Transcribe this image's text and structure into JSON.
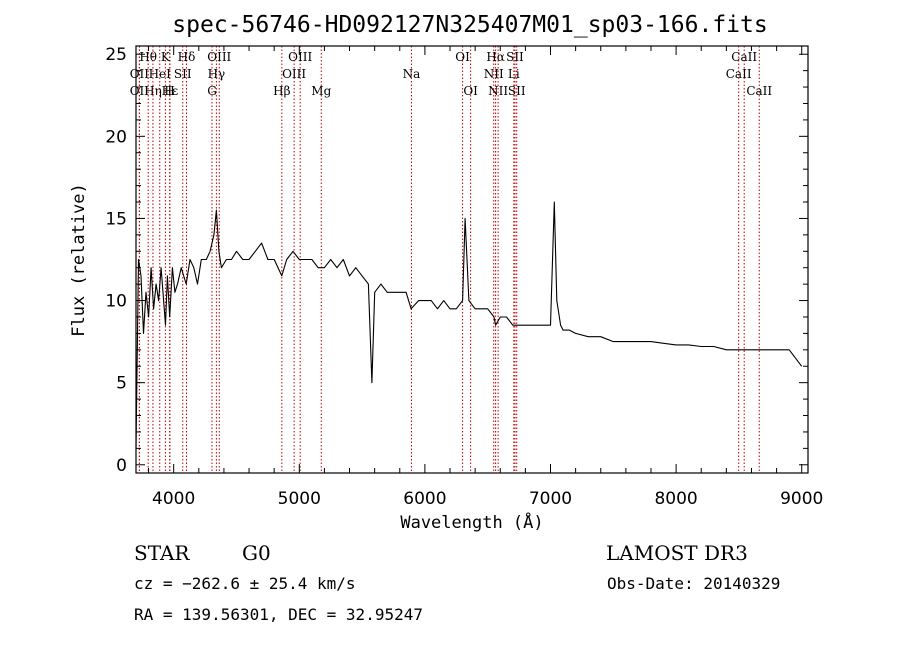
{
  "chart_data": {
    "type": "line",
    "title": "spec-56746-HD092127N325407M01_sp03-166.fits",
    "xlabel": "Wavelength (Å)",
    "ylabel": "Flux (relative)",
    "xlim": [
      3700,
      9050
    ],
    "ylim": [
      -0.5,
      25.5
    ],
    "xticks": [
      4000,
      5000,
      6000,
      7000,
      8000,
      9000
    ],
    "yticks": [
      0,
      5,
      10,
      15,
      20,
      25
    ],
    "series": [
      {
        "name": "flux",
        "x": [
          3700,
          3720,
          3740,
          3760,
          3780,
          3800,
          3820,
          3840,
          3860,
          3880,
          3900,
          3920,
          3935,
          3950,
          3968,
          3990,
          4010,
          4030,
          4060,
          4080,
          4100,
          4130,
          4160,
          4190,
          4220,
          4260,
          4290,
          4320,
          4340,
          4360,
          4380,
          4420,
          4460,
          4500,
          4550,
          4600,
          4650,
          4700,
          4750,
          4800,
          4861,
          4900,
          4950,
          5000,
          5050,
          5100,
          5150,
          5200,
          5250,
          5300,
          5350,
          5400,
          5450,
          5500,
          5550,
          5578,
          5600,
          5650,
          5700,
          5750,
          5800,
          5850,
          5890,
          5950,
          6000,
          6050,
          6100,
          6150,
          6200,
          6250,
          6300,
          6320,
          6350,
          6400,
          6450,
          6500,
          6550,
          6563,
          6600,
          6650,
          6700,
          6750,
          6800,
          6850,
          6900,
          6950,
          7000,
          7030,
          7050,
          7080,
          7100,
          7150,
          7200,
          7300,
          7400,
          7500,
          7600,
          7700,
          7800,
          7900,
          8000,
          8100,
          8200,
          8300,
          8400,
          8500,
          8600,
          8700,
          8800,
          8900,
          9000
        ],
        "values": [
          1,
          12.5,
          11.5,
          8,
          10.5,
          9,
          12,
          9.5,
          11,
          10,
          12,
          10,
          8.5,
          11.5,
          9,
          12,
          10.5,
          11,
          12,
          11.5,
          11,
          12.5,
          12,
          11,
          12.5,
          12.5,
          13,
          14,
          15.5,
          13,
          12,
          12.5,
          12.5,
          13,
          12.5,
          12.5,
          13,
          13.5,
          12.5,
          12.5,
          11.5,
          12.5,
          13,
          12.5,
          12.5,
          12.5,
          12,
          12,
          12.5,
          12,
          12.5,
          11.5,
          12,
          11.5,
          11,
          5,
          10.5,
          11,
          10.5,
          10.5,
          10.5,
          10.5,
          9.5,
          10,
          10,
          10,
          9.5,
          10,
          9.5,
          9.5,
          10,
          15,
          10,
          9.5,
          9.5,
          9.5,
          9,
          8.5,
          9,
          9,
          8.5,
          8.5,
          8.5,
          8.5,
          8.5,
          8.5,
          8.5,
          16,
          10,
          8.5,
          8.2,
          8.2,
          8,
          7.8,
          7.8,
          7.5,
          7.5,
          7.5,
          7.5,
          7.4,
          7.3,
          7.3,
          7.2,
          7.2,
          7,
          7,
          7,
          7,
          7,
          7,
          6
        ]
      }
    ],
    "lines": [
      {
        "label": "Hθ",
        "x": 3797,
        "row": 1
      },
      {
        "label": "OII",
        "x": 3727,
        "row": 2
      },
      {
        "label": "OII",
        "x": 3727,
        "row": 3
      },
      {
        "label": "Hε",
        "x": 3970,
        "row": 3
      },
      {
        "label": "K",
        "x": 3934,
        "row": 1
      },
      {
        "label": "HeI",
        "x": 3889,
        "row": 2
      },
      {
        "label": "Hη",
        "x": 3835,
        "row": 3
      },
      {
        "label": "H",
        "x": 3968,
        "row": 3
      },
      {
        "label": "Hδ",
        "x": 4102,
        "row": 1
      },
      {
        "label": "SII",
        "x": 4072,
        "row": 2
      },
      {
        "label": "OIII",
        "x": 4363,
        "row": 1
      },
      {
        "label": "Hγ",
        "x": 4340,
        "row": 2
      },
      {
        "label": "G",
        "x": 4305,
        "row": 3
      },
      {
        "label": "Hβ",
        "x": 4861,
        "row": 3
      },
      {
        "label": "OIII",
        "x": 4959,
        "row": 2
      },
      {
        "label": "OIII",
        "x": 5007,
        "row": 1
      },
      {
        "label": "Mg",
        "x": 5175,
        "row": 3
      },
      {
        "label": "Na",
        "x": 5893,
        "row": 2
      },
      {
        "label": "OI",
        "x": 6300,
        "row": 1
      },
      {
        "label": "OI",
        "x": 6364,
        "row": 3
      },
      {
        "label": "NII",
        "x": 6548,
        "row": 2
      },
      {
        "label": "NII",
        "x": 6583,
        "row": 3
      },
      {
        "label": "Hα",
        "x": 6563,
        "row": 1
      },
      {
        "label": "SII",
        "x": 6717,
        "row": 1
      },
      {
        "label": "Li",
        "x": 6708,
        "row": 2
      },
      {
        "label": "SII",
        "x": 6731,
        "row": 3
      },
      {
        "label": "CaII",
        "x": 8498,
        "row": 2
      },
      {
        "label": "CaII",
        "x": 8542,
        "row": 1
      },
      {
        "label": "CaII",
        "x": 8662,
        "row": 3
      }
    ],
    "marker_colors": {
      "line": "#c00000",
      "trace": "#000000"
    }
  },
  "info": {
    "object_type": "STAR",
    "subclass": "G0",
    "survey": "LAMOST DR3",
    "cz": "cz = −262.6 ± 25.4 km/s",
    "obs_date": "Obs-Date: 20140329",
    "coords": "RA = 139.56301, DEC =  32.95247"
  }
}
